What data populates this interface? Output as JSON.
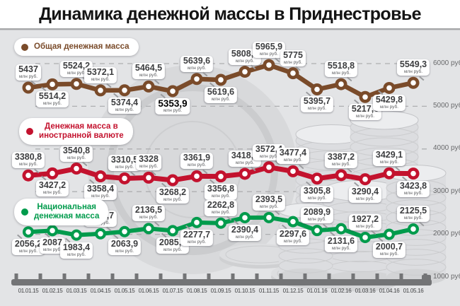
{
  "title": "Динамика денежной массы в Приднестровье",
  "background_color": "#e3e4e6",
  "chart_data": {
    "type": "line",
    "title": "Динамика денежной массы в Приднестровье",
    "unit_label": "млн руб.",
    "x_labels": [
      "01.01.15",
      "01.02.15",
      "01.03.15",
      "01.04.15",
      "01.05.15",
      "01.06.15",
      "01.07.15",
      "01.08.15",
      "01.09.15",
      "01.10.15",
      "01.11.15",
      "01.12.15",
      "01.01.16",
      "01.02.16",
      "01.03.16",
      "01.04.16",
      "01.05.16"
    ],
    "y_axis": {
      "position": "right",
      "gridlines": "dashed",
      "range": [
        1000,
        6000
      ],
      "tick_values": [
        6000,
        5000,
        4000,
        3000,
        2000,
        1000
      ],
      "tick_labels": [
        "6000 руб.",
        "5000 руб.",
        "4000 руб.",
        "3000 руб.",
        "2000 руб.",
        "1000 руб."
      ]
    },
    "legend_position": "left-inside",
    "series": [
      {
        "name": "Общая денежная масса",
        "legend_lines": [
          "Общая денежная масса"
        ],
        "color": "#7a4b2a",
        "values": [
          "5437",
          "5514,2",
          "5524,2",
          "5372,1",
          "5374,4",
          "5464,5",
          "5353,9",
          "5639,6",
          "5619,6",
          "5808,6",
          "5965,9",
          "5775",
          "5395,7",
          "5518,8",
          "5217,6",
          "5429,8",
          "5549,3"
        ],
        "label_side": [
          "above",
          "below",
          "above",
          "above",
          "below",
          "above",
          "below",
          "above",
          "below",
          "above",
          "above",
          "above",
          "below",
          "above",
          "below",
          "below",
          "above"
        ],
        "emphasis_index": 6
      },
      {
        "name": "Денежная масса в иностранной валюте",
        "legend_lines": [
          "Денежная масса в",
          "иностранной валюте"
        ],
        "color": "#c3122e",
        "values": [
          "3380,8",
          "3427,2",
          "3540,8",
          "3358,4",
          "3310,5",
          "3328",
          "3268,2",
          "3361,9",
          "3356,8",
          "3418,2",
          "3572,4",
          "3477,4",
          "3305,8",
          "3387,2",
          "3290,4",
          "3429,1",
          "3423,8"
        ],
        "label_side": [
          "above",
          "below",
          "above",
          "below",
          "above",
          "above",
          "below",
          "above",
          "below",
          "above",
          "above",
          "above",
          "below",
          "above",
          "below",
          "above",
          "below"
        ],
        "emphasis_index": null
      },
      {
        "name": "Национальная денежная масса",
        "legend_lines": [
          "Национальная",
          "денежная масса"
        ],
        "color": "#009b4c",
        "values": [
          "2056,2",
          "2087",
          "1983,4",
          "2013,7",
          "2063,9",
          "2136,5",
          "2085,7",
          "2277,7",
          "2262,8",
          "2390,4",
          "2393,5",
          "2297,6",
          "2089,9",
          "2131,6",
          "1927,2",
          "2000,7",
          "2125,5"
        ],
        "label_side": [
          "below",
          "below",
          "below",
          "above",
          "below",
          "above",
          "below",
          "below",
          "above",
          "below",
          "above",
          "below",
          "above",
          "below",
          "above",
          "below",
          "above"
        ],
        "emphasis_index": null
      }
    ]
  }
}
